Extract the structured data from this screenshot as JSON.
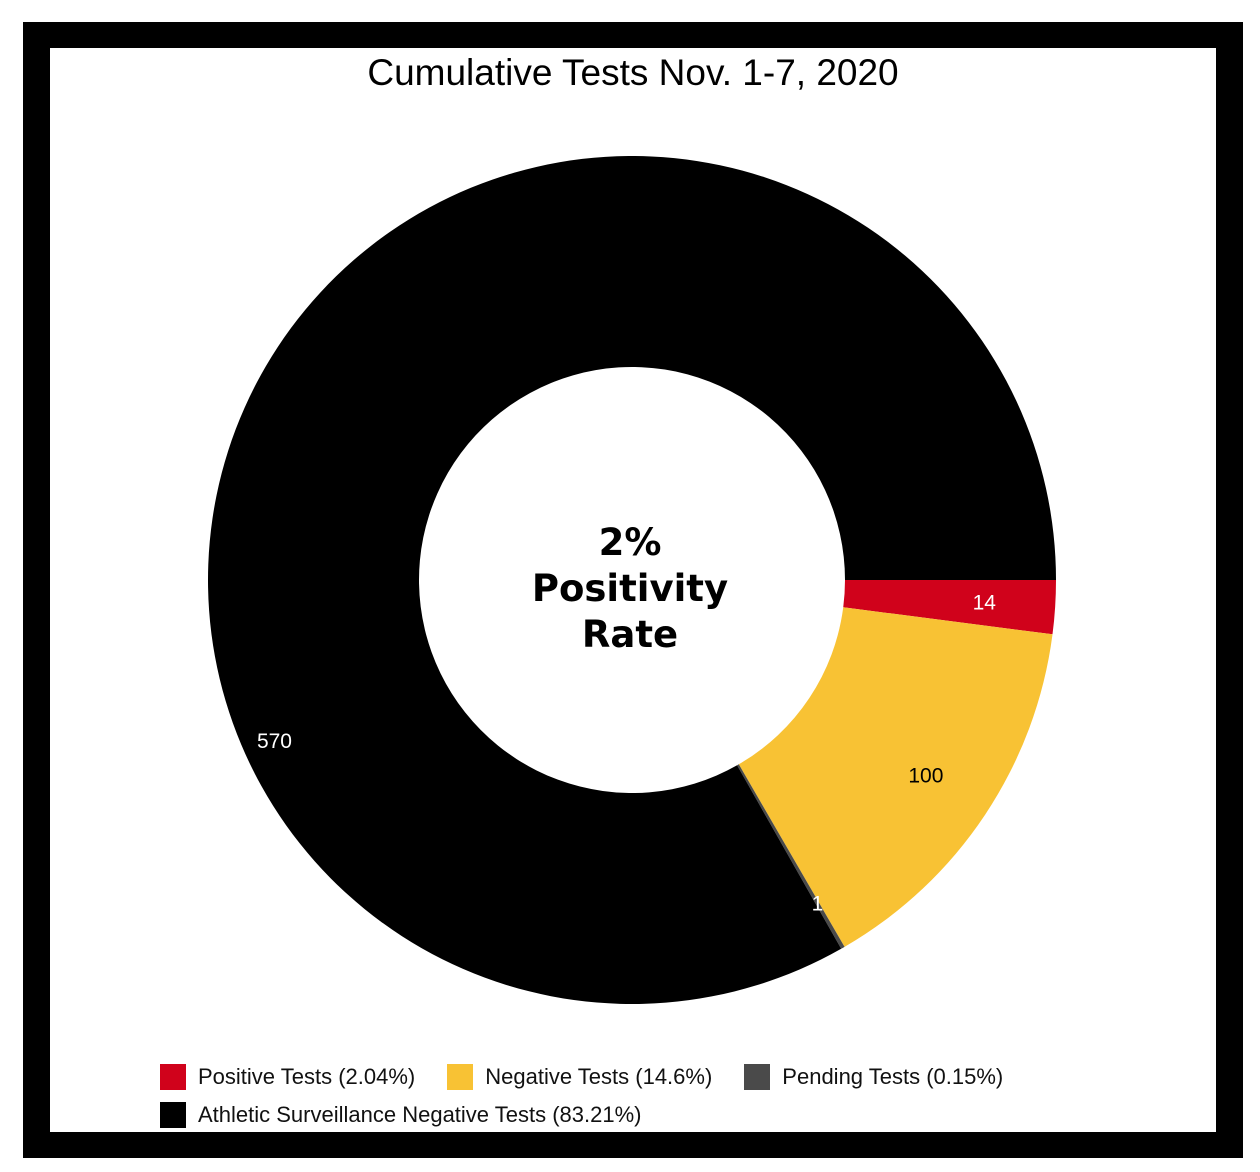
{
  "chart_data": {
    "type": "pie",
    "title": "Cumulative Tests Nov. 1-7, 2020",
    "center_text": [
      "2%",
      "Positivity",
      "Rate"
    ],
    "series": [
      {
        "name": "Positive Tests (2.04%)",
        "value": 14,
        "label": "14",
        "color": "#d0021b",
        "label_color": "#ffffff"
      },
      {
        "name": "Negative Tests (14.6%)",
        "value": 100,
        "label": "100",
        "color": "#f8c234",
        "label_color": "#000000"
      },
      {
        "name": "Pending Tests (0.15%)",
        "value": 1,
        "label": "1",
        "color": "#4a4a4a",
        "label_color": "#ffffff"
      },
      {
        "name": "Athletic Surveillance Negative Tests (83.21%)",
        "value": 570,
        "label": "570",
        "color": "#000000",
        "label_color": "#ffffff"
      }
    ],
    "legend_position": "bottom"
  }
}
